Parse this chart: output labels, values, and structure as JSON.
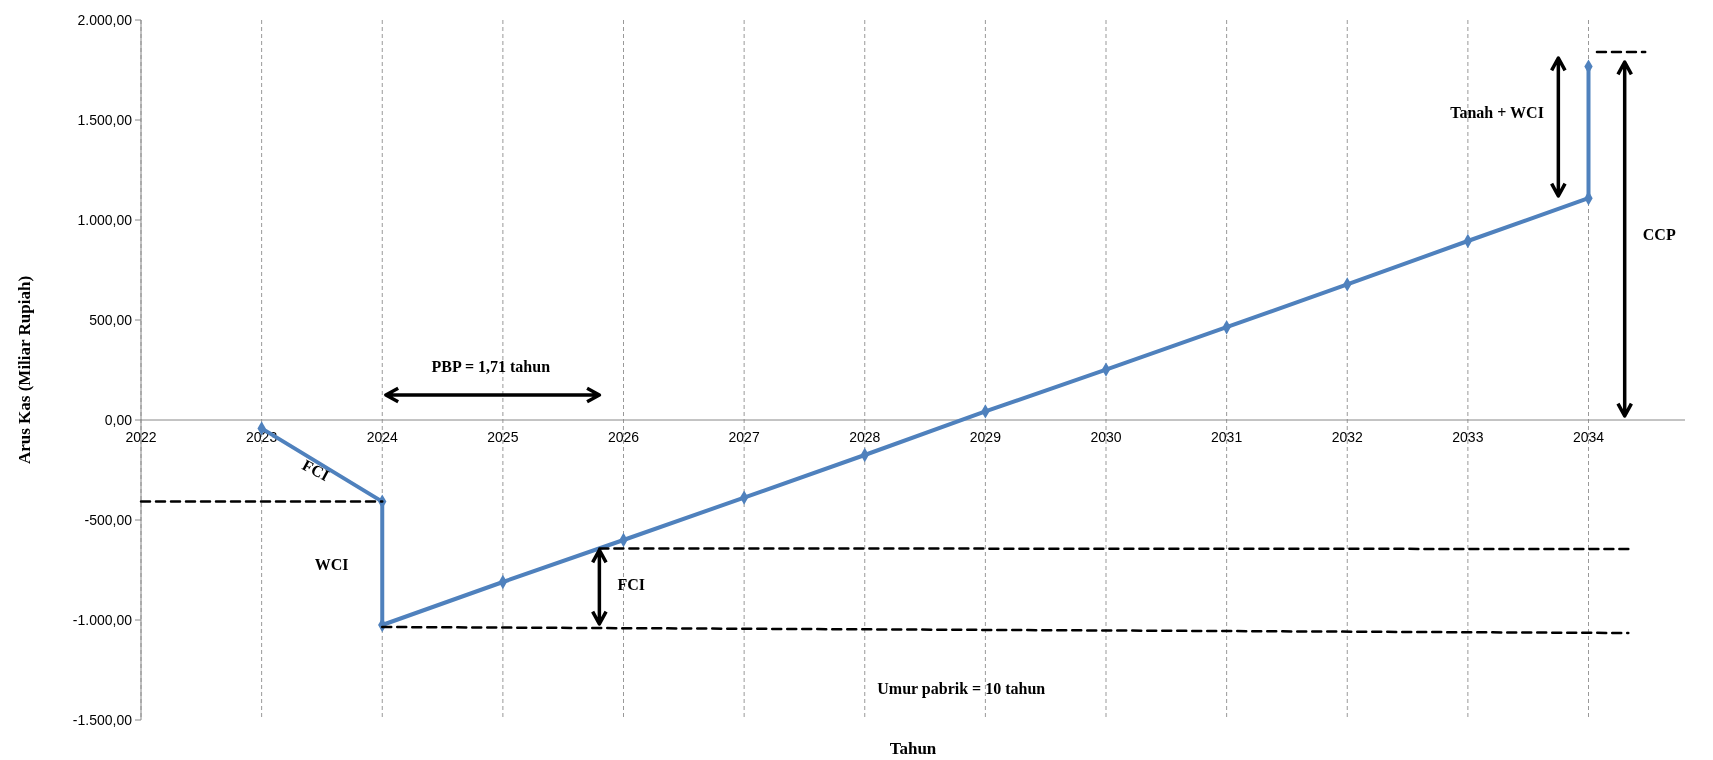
{
  "chart_data": {
    "type": "line",
    "xlabel": "Tahun",
    "ylabel": "Arus Kas (Miliar Rupiah)",
    "xlim": [
      2022,
      2034.8
    ],
    "xticks": [
      2022,
      2023,
      2024,
      2025,
      2026,
      2027,
      2028,
      2029,
      2030,
      2031,
      2032,
      2033,
      2034
    ],
    "ylim": [
      -1500,
      2000
    ],
    "yticks": [
      {
        "value": -1500,
        "label": "-1.500,00"
      },
      {
        "value": -1000,
        "label": "-1.000,00"
      },
      {
        "value": -500,
        "label": "-500,00"
      },
      {
        "value": 0,
        "label": "0,00"
      },
      {
        "value": 500,
        "label": "500,00"
      },
      {
        "value": 1000,
        "label": "1.000,00"
      },
      {
        "value": 1500,
        "label": "1.500,00"
      },
      {
        "value": 2000,
        "label": "2.000,00"
      }
    ],
    "grid": "x",
    "series": [
      {
        "color": "#4f81bd",
        "marker": "diamond",
        "line_style": "solid",
        "x": [
          2023,
          2024,
          2024,
          2025,
          2026,
          2027,
          2028,
          2029,
          2030,
          2031,
          2032,
          2033,
          2034,
          2034
        ],
        "values": [
          -42,
          -408,
          -1025,
          -810,
          -600,
          -388,
          -175,
          43,
          252,
          464,
          678,
          895,
          1109,
          1767
        ]
      },
      {
        "color": "#000000",
        "marker": "none",
        "line_style": "dashed",
        "x": [
          2022,
          2024
        ],
        "values": [
          -408,
          -408
        ]
      },
      {
        "color": "#000000",
        "marker": "none",
        "line_style": "dashed",
        "x": [
          2025.8,
          2034.33
        ],
        "values": [
          -642,
          -645
        ]
      },
      {
        "color": "#000000",
        "marker": "none",
        "line_style": "dashed",
        "x": [
          2024,
          2034.33
        ],
        "values": [
          -1035,
          -1065
        ]
      },
      {
        "color": "#000000",
        "marker": "none",
        "line_style": "dashed",
        "x": [
          2034.07,
          2034.47
        ],
        "values": [
          1840,
          1840
        ]
      }
    ],
    "annotations": [
      "FCI",
      "WCI",
      "PBP = 1,71 tahun",
      "FCI",
      "Tanah + WCI",
      "CCP",
      "Umur pabrik = 10 tahun"
    ]
  }
}
